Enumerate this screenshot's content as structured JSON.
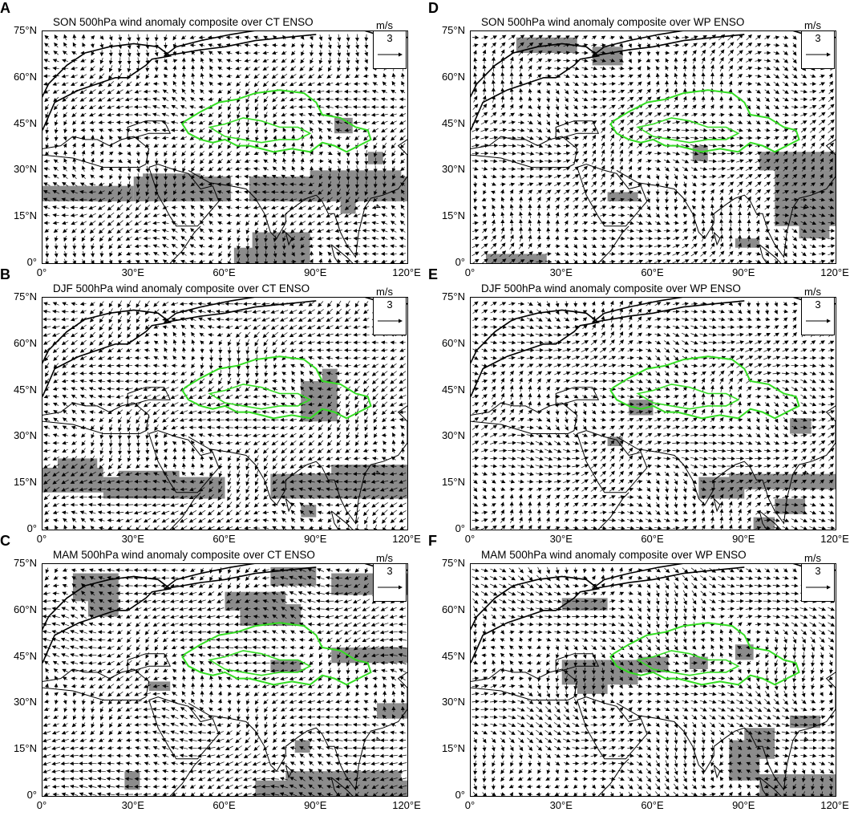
{
  "y_ticks": [
    "75°N",
    "60°N",
    "45°N",
    "30°N",
    "15°N",
    "0°"
  ],
  "x_ticks": [
    "0°",
    "30°E",
    "60°E",
    "90°E",
    "120°E"
  ],
  "colors": {
    "shade": "#8c8c8c",
    "basin": "#33dd22",
    "arrow": "#000000",
    "coast": "#000000"
  },
  "reference_vector": {
    "value": "3",
    "unit": "m/s"
  },
  "panels": [
    {
      "letter": "A",
      "title": "SON 500hPa wind anomaly composite over CT ENSO",
      "shading": [
        [
          0,
          20,
          28,
          20
        ],
        [
          0,
          20,
          35,
          26
        ],
        [
          0,
          30,
          20,
          25
        ],
        [
          30,
          62,
          20,
          28
        ],
        [
          33,
          52,
          25,
          29
        ],
        [
          68,
          120,
          20,
          28
        ],
        [
          88,
          118,
          24,
          30
        ],
        [
          69,
          88,
          0,
          10
        ],
        [
          63,
          78,
          0,
          5
        ],
        [
          96,
          102,
          42,
          47
        ],
        [
          107,
          112,
          32,
          36
        ],
        [
          98,
          103,
          16,
          20
        ]
      ],
      "arrows": {
        "u0": -0.4,
        "v0": -0.2,
        "ax": 0.35,
        "ay": -0.5,
        "kx": 0.09,
        "ky": 0.11,
        "phase": 0.3
      }
    },
    {
      "letter": "B",
      "title": "DJF 500hPa wind anomaly composite over CT ENSO",
      "shading": [
        [
          0,
          20,
          12,
          20
        ],
        [
          5,
          18,
          18,
          23
        ],
        [
          20,
          60,
          10,
          17
        ],
        [
          25,
          45,
          15,
          19
        ],
        [
          75,
          120,
          10,
          18
        ],
        [
          95,
          120,
          17,
          21
        ],
        [
          85,
          90,
          4,
          8
        ],
        [
          85,
          97,
          35,
          48
        ],
        [
          92,
          97,
          44,
          52
        ],
        [
          85,
          92,
          35,
          42
        ]
      ],
      "arrows": {
        "u0": -0.6,
        "v0": -0.3,
        "ax": 0.4,
        "ay": 0.5,
        "kx": 0.07,
        "ky": 0.13,
        "phase": 1.1
      }
    },
    {
      "letter": "C",
      "title": "MAM 500hPa wind anomaly composite over CT ENSO",
      "shading": [
        [
          10,
          25,
          63,
          72
        ],
        [
          15,
          25,
          58,
          64
        ],
        [
          60,
          80,
          60,
          66
        ],
        [
          65,
          85,
          55,
          62
        ],
        [
          75,
          90,
          68,
          74
        ],
        [
          95,
          120,
          65,
          72
        ],
        [
          95,
          120,
          43,
          48
        ],
        [
          75,
          85,
          40,
          44
        ],
        [
          35,
          42,
          34,
          37
        ],
        [
          27,
          32,
          2,
          8
        ],
        [
          70,
          120,
          0,
          5
        ],
        [
          80,
          118,
          2,
          8
        ],
        [
          110,
          120,
          25,
          30
        ],
        [
          83,
          88,
          14,
          18
        ]
      ],
      "arrows": {
        "u0": -0.7,
        "v0": -0.1,
        "ax": 0.5,
        "ay": 0.4,
        "kx": 0.12,
        "ky": 0.08,
        "phase": 2.0
      }
    },
    {
      "letter": "D",
      "title": "SON 500hPa wind anomaly composite over WP ENSO",
      "shading": [
        [
          15,
          35,
          68,
          73
        ],
        [
          40,
          50,
          64,
          70
        ],
        [
          73,
          78,
          33,
          38
        ],
        [
          95,
          120,
          30,
          36
        ],
        [
          100,
          120,
          12,
          30
        ],
        [
          108,
          118,
          8,
          14
        ],
        [
          45,
          55,
          20,
          23
        ],
        [
          5,
          25,
          0,
          3
        ],
        [
          87,
          95,
          5,
          8
        ]
      ],
      "arrows": {
        "u0": 0.5,
        "v0": 0.2,
        "ax": 0.4,
        "ay": 0.5,
        "kx": 0.1,
        "ky": 0.09,
        "phase": 0.7
      }
    },
    {
      "letter": "E",
      "title": "DJF 500hPa wind anomaly composite over WP ENSO",
      "shading": [
        [
          75,
          90,
          10,
          17
        ],
        [
          85,
          120,
          13,
          18
        ],
        [
          100,
          110,
          5,
          10
        ],
        [
          93,
          100,
          0,
          4
        ],
        [
          105,
          112,
          31,
          36
        ],
        [
          45,
          50,
          27,
          30
        ],
        [
          52,
          60,
          37,
          42
        ]
      ],
      "arrows": {
        "u0": 0.6,
        "v0": 0.1,
        "ax": 0.35,
        "ay": 0.45,
        "kx": 0.11,
        "ky": 0.12,
        "phase": 1.6
      }
    },
    {
      "letter": "F",
      "title": "MAM 500hPa wind anomaly composite over WP ENSO",
      "shading": [
        [
          30,
          45,
          60,
          64
        ],
        [
          30,
          55,
          36,
          44
        ],
        [
          35,
          45,
          33,
          38
        ],
        [
          55,
          65,
          40,
          45
        ],
        [
          72,
          78,
          41,
          45
        ],
        [
          85,
          95,
          5,
          18
        ],
        [
          90,
          100,
          12,
          22
        ],
        [
          95,
          120,
          0,
          7
        ],
        [
          105,
          115,
          22,
          26
        ],
        [
          87,
          93,
          44,
          49
        ]
      ],
      "arrows": {
        "u0": 0.4,
        "v0": -0.3,
        "ax": 0.45,
        "ay": 0.4,
        "kx": 0.08,
        "ky": 0.1,
        "phase": 2.4
      }
    }
  ]
}
